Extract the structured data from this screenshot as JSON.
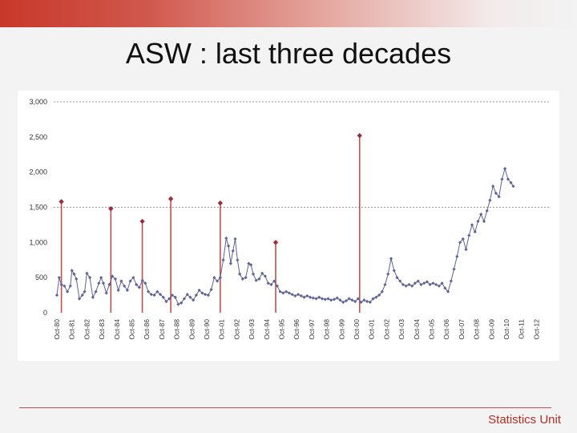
{
  "slide": {
    "title": "ASW : last three decades",
    "footer": "Statistics Unit"
  },
  "colors": {
    "series": "#5e6396",
    "spike": "#9a2d3a",
    "reference_line": "#9a9a9a",
    "accent": "#c0504d"
  },
  "chart_data": {
    "type": "line",
    "title": "",
    "xlabel": "",
    "ylabel": "",
    "ylim": [
      0,
      3000
    ],
    "yticks": [
      0,
      500,
      1000,
      1500,
      2000,
      2500,
      3000
    ],
    "ytick_labels": [
      "0",
      "500",
      "1,000",
      "1,500",
      "2,000",
      "2,500",
      "3,000"
    ],
    "reference_lines": [
      1500,
      3000
    ],
    "x_categories": [
      "Oct-80",
      "Oct-81",
      "Oct-82",
      "Oct-83",
      "Oct-84",
      "Oct-85",
      "Oct-86",
      "Oct-87",
      "Oct-88",
      "Oct-89",
      "Oct-90",
      "Oct-01",
      "Oct-92",
      "Oct-93",
      "Oct-94",
      "Oct-95",
      "Oct-96",
      "Oct-97",
      "Oct-98",
      "Oct-99",
      "Oct-00",
      "Oct-01",
      "Oct-02",
      "Oct-03",
      "Oct-04",
      "Oct-05",
      "Oct-06",
      "Oct-07",
      "Oct-08",
      "Oct-09",
      "Oct-10",
      "Oct-11",
      "Oct-12"
    ],
    "series": [
      {
        "values": [
          {
            "x": 0.0,
            "y": 250
          },
          {
            "x": 0.15,
            "y": 500
          },
          {
            "x": 0.3,
            "y": 400
          },
          {
            "x": 0.5,
            "y": 380
          },
          {
            "x": 0.7,
            "y": 300
          },
          {
            "x": 0.9,
            "y": 380
          },
          {
            "x": 1.0,
            "y": 600
          },
          {
            "x": 1.15,
            "y": 550
          },
          {
            "x": 1.3,
            "y": 480
          },
          {
            "x": 1.5,
            "y": 200
          },
          {
            "x": 1.7,
            "y": 250
          },
          {
            "x": 1.85,
            "y": 300
          },
          {
            "x": 2.0,
            "y": 560
          },
          {
            "x": 2.2,
            "y": 500
          },
          {
            "x": 2.4,
            "y": 220
          },
          {
            "x": 2.6,
            "y": 300
          },
          {
            "x": 2.8,
            "y": 420
          },
          {
            "x": 2.95,
            "y": 500
          },
          {
            "x": 3.1,
            "y": 420
          },
          {
            "x": 3.3,
            "y": 280
          },
          {
            "x": 3.5,
            "y": 400
          },
          {
            "x": 3.7,
            "y": 520
          },
          {
            "x": 3.9,
            "y": 480
          },
          {
            "x": 4.1,
            "y": 320
          },
          {
            "x": 4.3,
            "y": 450
          },
          {
            "x": 4.5,
            "y": 380
          },
          {
            "x": 4.7,
            "y": 320
          },
          {
            "x": 4.9,
            "y": 450
          },
          {
            "x": 5.1,
            "y": 500
          },
          {
            "x": 5.3,
            "y": 400
          },
          {
            "x": 5.5,
            "y": 360
          },
          {
            "x": 5.7,
            "y": 460
          },
          {
            "x": 5.9,
            "y": 420
          },
          {
            "x": 6.1,
            "y": 300
          },
          {
            "x": 6.3,
            "y": 260
          },
          {
            "x": 6.5,
            "y": 250
          },
          {
            "x": 6.7,
            "y": 300
          },
          {
            "x": 6.9,
            "y": 260
          },
          {
            "x": 7.1,
            "y": 220
          },
          {
            "x": 7.3,
            "y": 160
          },
          {
            "x": 7.5,
            "y": 200
          },
          {
            "x": 7.7,
            "y": 250
          },
          {
            "x": 7.9,
            "y": 220
          },
          {
            "x": 8.1,
            "y": 120
          },
          {
            "x": 8.3,
            "y": 140
          },
          {
            "x": 8.5,
            "y": 200
          },
          {
            "x": 8.7,
            "y": 260
          },
          {
            "x": 8.9,
            "y": 220
          },
          {
            "x": 9.1,
            "y": 180
          },
          {
            "x": 9.3,
            "y": 250
          },
          {
            "x": 9.5,
            "y": 320
          },
          {
            "x": 9.7,
            "y": 280
          },
          {
            "x": 9.9,
            "y": 260
          },
          {
            "x": 10.1,
            "y": 250
          },
          {
            "x": 10.3,
            "y": 330
          },
          {
            "x": 10.5,
            "y": 500
          },
          {
            "x": 10.7,
            "y": 450
          },
          {
            "x": 10.9,
            "y": 500
          },
          {
            "x": 11.1,
            "y": 750
          },
          {
            "x": 11.3,
            "y": 1060
          },
          {
            "x": 11.45,
            "y": 950
          },
          {
            "x": 11.6,
            "y": 700
          },
          {
            "x": 11.75,
            "y": 880
          },
          {
            "x": 11.9,
            "y": 1050
          },
          {
            "x": 12.05,
            "y": 750
          },
          {
            "x": 12.2,
            "y": 550
          },
          {
            "x": 12.4,
            "y": 480
          },
          {
            "x": 12.6,
            "y": 500
          },
          {
            "x": 12.8,
            "y": 700
          },
          {
            "x": 12.95,
            "y": 680
          },
          {
            "x": 13.1,
            "y": 550
          },
          {
            "x": 13.3,
            "y": 460
          },
          {
            "x": 13.5,
            "y": 480
          },
          {
            "x": 13.7,
            "y": 560
          },
          {
            "x": 13.9,
            "y": 520
          },
          {
            "x": 14.1,
            "y": 420
          },
          {
            "x": 14.3,
            "y": 400
          },
          {
            "x": 14.5,
            "y": 450
          },
          {
            "x": 14.7,
            "y": 380
          },
          {
            "x": 14.9,
            "y": 300
          },
          {
            "x": 15.1,
            "y": 280
          },
          {
            "x": 15.3,
            "y": 300
          },
          {
            "x": 15.5,
            "y": 280
          },
          {
            "x": 15.7,
            "y": 260
          },
          {
            "x": 15.9,
            "y": 240
          },
          {
            "x": 16.1,
            "y": 260
          },
          {
            "x": 16.3,
            "y": 240
          },
          {
            "x": 16.5,
            "y": 220
          },
          {
            "x": 16.7,
            "y": 240
          },
          {
            "x": 16.9,
            "y": 220
          },
          {
            "x": 17.1,
            "y": 210
          },
          {
            "x": 17.3,
            "y": 200
          },
          {
            "x": 17.5,
            "y": 220
          },
          {
            "x": 17.7,
            "y": 200
          },
          {
            "x": 17.9,
            "y": 190
          },
          {
            "x": 18.1,
            "y": 200
          },
          {
            "x": 18.3,
            "y": 180
          },
          {
            "x": 18.5,
            "y": 190
          },
          {
            "x": 18.7,
            "y": 210
          },
          {
            "x": 18.9,
            "y": 180
          },
          {
            "x": 19.1,
            "y": 150
          },
          {
            "x": 19.3,
            "y": 170
          },
          {
            "x": 19.5,
            "y": 200
          },
          {
            "x": 19.7,
            "y": 180
          },
          {
            "x": 19.9,
            "y": 160
          },
          {
            "x": 20.1,
            "y": 200
          },
          {
            "x": 20.3,
            "y": 150
          },
          {
            "x": 20.5,
            "y": 180
          },
          {
            "x": 20.7,
            "y": 160
          },
          {
            "x": 20.9,
            "y": 150
          },
          {
            "x": 21.1,
            "y": 200
          },
          {
            "x": 21.3,
            "y": 220
          },
          {
            "x": 21.5,
            "y": 250
          },
          {
            "x": 21.7,
            "y": 300
          },
          {
            "x": 21.9,
            "y": 400
          },
          {
            "x": 22.1,
            "y": 550
          },
          {
            "x": 22.3,
            "y": 770
          },
          {
            "x": 22.5,
            "y": 600
          },
          {
            "x": 22.7,
            "y": 500
          },
          {
            "x": 22.9,
            "y": 450
          },
          {
            "x": 23.1,
            "y": 400
          },
          {
            "x": 23.3,
            "y": 380
          },
          {
            "x": 23.5,
            "y": 400
          },
          {
            "x": 23.7,
            "y": 380
          },
          {
            "x": 23.9,
            "y": 420
          },
          {
            "x": 24.1,
            "y": 450
          },
          {
            "x": 24.3,
            "y": 400
          },
          {
            "x": 24.5,
            "y": 420
          },
          {
            "x": 24.7,
            "y": 440
          },
          {
            "x": 24.9,
            "y": 400
          },
          {
            "x": 25.1,
            "y": 420
          },
          {
            "x": 25.3,
            "y": 400
          },
          {
            "x": 25.5,
            "y": 380
          },
          {
            "x": 25.7,
            "y": 420
          },
          {
            "x": 25.9,
            "y": 350
          },
          {
            "x": 26.1,
            "y": 300
          },
          {
            "x": 26.3,
            "y": 450
          },
          {
            "x": 26.5,
            "y": 620
          },
          {
            "x": 26.7,
            "y": 800
          },
          {
            "x": 26.9,
            "y": 1000
          },
          {
            "x": 27.1,
            "y": 1050
          },
          {
            "x": 27.3,
            "y": 900
          },
          {
            "x": 27.5,
            "y": 1100
          },
          {
            "x": 27.7,
            "y": 1250
          },
          {
            "x": 27.9,
            "y": 1150
          },
          {
            "x": 28.1,
            "y": 1300
          },
          {
            "x": 28.3,
            "y": 1400
          },
          {
            "x": 28.5,
            "y": 1300
          },
          {
            "x": 28.7,
            "y": 1450
          },
          {
            "x": 28.9,
            "y": 1600
          },
          {
            "x": 29.1,
            "y": 1800
          },
          {
            "x": 29.3,
            "y": 1700
          },
          {
            "x": 29.5,
            "y": 1650
          },
          {
            "x": 29.7,
            "y": 1900
          },
          {
            "x": 29.9,
            "y": 2050
          },
          {
            "x": 30.1,
            "y": 1900
          },
          {
            "x": 30.3,
            "y": 1850
          },
          {
            "x": 30.45,
            "y": 1800
          }
        ]
      }
    ],
    "spikes": [
      {
        "x": 0.3,
        "y": 1580
      },
      {
        "x": 3.6,
        "y": 1480
      },
      {
        "x": 5.7,
        "y": 1300
      },
      {
        "x": 7.6,
        "y": 1620
      },
      {
        "x": 10.9,
        "y": 1560
      },
      {
        "x": 14.6,
        "y": 1000
      },
      {
        "x": 20.2,
        "y": 2520
      }
    ]
  }
}
